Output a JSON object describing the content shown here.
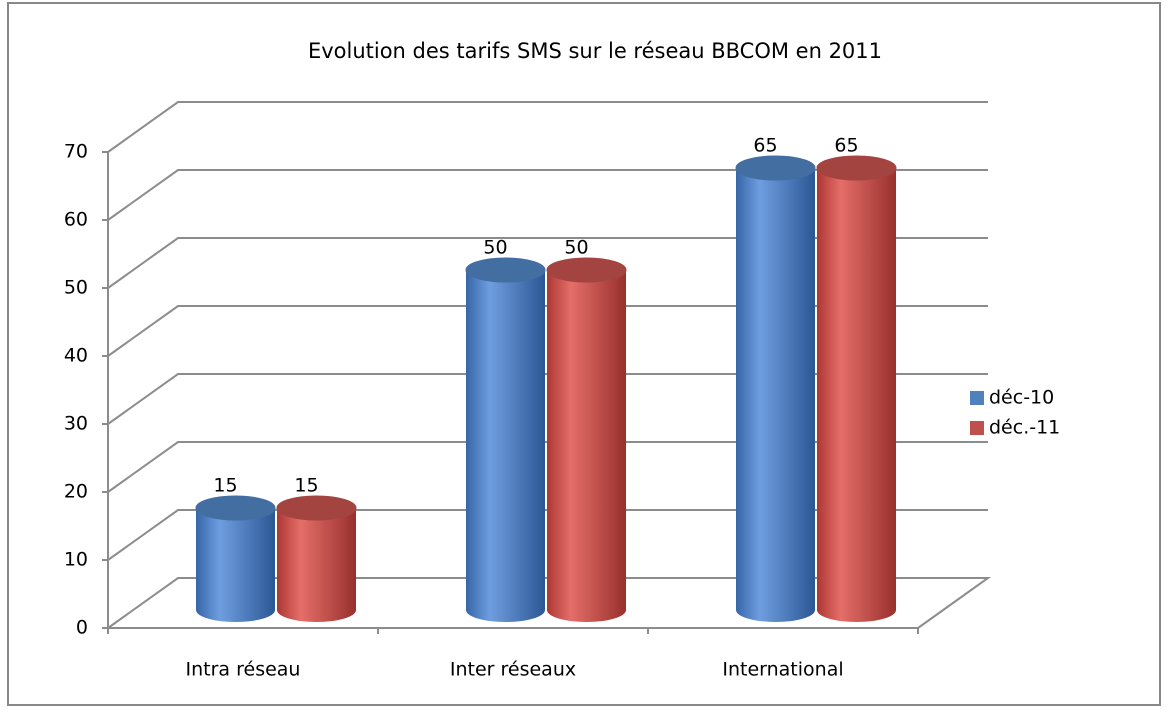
{
  "chart_data": {
    "type": "bar3d",
    "title": "Evolution des tarifs SMS sur le réseau BBCOM en 2011",
    "categories": [
      "Intra réseau",
      "Inter réseaux",
      "International"
    ],
    "series": [
      {
        "name": "déc-10",
        "color": "#4f81bd",
        "values": [
          15,
          50,
          65
        ]
      },
      {
        "name": "déc.-11",
        "color": "#c0504d",
        "values": [
          15,
          50,
          65
        ]
      }
    ],
    "ylim": [
      0,
      70
    ],
    "yticks": [
      0,
      10,
      20,
      30,
      40,
      50,
      60,
      70
    ],
    "grid": true,
    "legend": "right"
  }
}
